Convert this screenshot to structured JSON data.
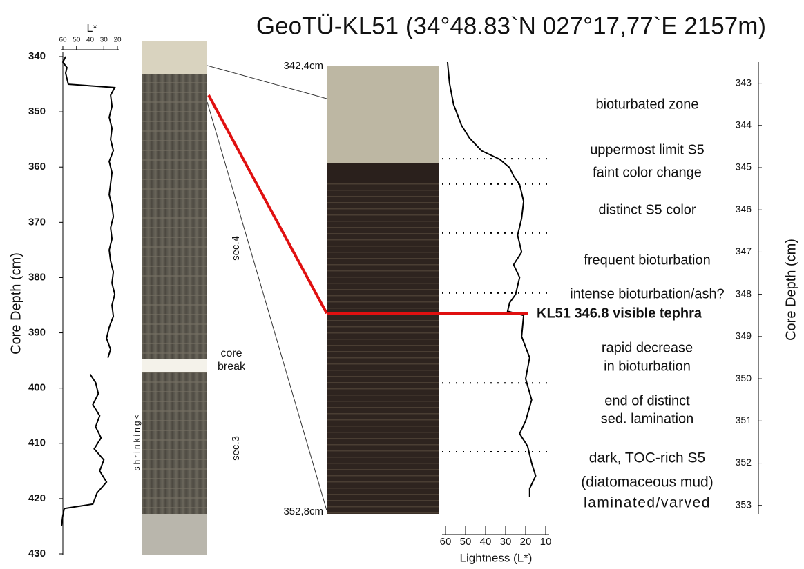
{
  "title": "GeoTÜ-KL51 (34°48.83`N  027°17,77`E  2157m)",
  "chart_data": [
    {
      "type": "line",
      "y_axis_label": "Core Depth (cm)",
      "x_axis_label": "L*",
      "xlim": [
        60,
        20
      ],
      "xticks": [
        60,
        50,
        40,
        30,
        20
      ],
      "ylim": [
        340,
        430
      ],
      "yticks": [
        340,
        350,
        360,
        370,
        380,
        390,
        400,
        410,
        420,
        430
      ],
      "x": [
        340,
        341,
        342,
        343,
        344,
        345,
        345.6,
        347,
        349,
        351,
        353,
        355,
        357,
        359,
        361,
        363,
        365,
        367,
        369,
        371,
        373,
        375,
        377,
        379,
        381,
        383,
        385,
        387,
        389,
        391,
        393,
        394.5,
        396,
        397.5,
        399,
        401,
        403,
        405,
        407,
        409,
        411,
        413,
        415,
        417,
        419,
        421,
        421.8,
        423,
        425
      ],
      "series": [
        {
          "name": "L*",
          "color": "#000000",
          "values": [
            58,
            60,
            57,
            58,
            57,
            56,
            22,
            25,
            24,
            26,
            24,
            25,
            23,
            26,
            24,
            25,
            26,
            24,
            23,
            25,
            24,
            26,
            25,
            23,
            24,
            22,
            24,
            23,
            26,
            28,
            25,
            27,
            null,
            40,
            36,
            34,
            38,
            33,
            36,
            32,
            37,
            30,
            33,
            28,
            35,
            38,
            59,
            60,
            61
          ]
        }
      ],
      "core_labels": [
        "sec.4",
        "core break",
        "shrinking<",
        "sec.3"
      ]
    },
    {
      "type": "line",
      "y_axis_label": "Core Depth (cm)",
      "x_axis_label": "Lightness (L*)",
      "xlim": [
        60,
        10
      ],
      "xticks": [
        60,
        50,
        40,
        30,
        20,
        10
      ],
      "ylim": [
        342.5,
        353.2
      ],
      "yticks": [
        343,
        344,
        345,
        346,
        347,
        348,
        349,
        350,
        351,
        352,
        353
      ],
      "photo_top_label": "342,4cm",
      "photo_bottom_label": "352,8cm",
      "x": [
        342.5,
        343,
        343.5,
        344,
        344.3,
        344.6,
        344.8,
        345,
        345.2,
        345.4,
        345.8,
        346.2,
        346.6,
        347,
        347.3,
        347.6,
        348,
        348.2,
        348.4,
        348.5,
        349,
        349.5,
        350,
        350.5,
        351,
        351.3,
        351.6,
        352,
        352.3,
        352.6,
        352.8
      ],
      "series": [
        {
          "name": "Lightness (L*)",
          "color": "#000000",
          "values": [
            59,
            58,
            56,
            52,
            48,
            42,
            33,
            28,
            26,
            23,
            21,
            22,
            24,
            22,
            26,
            23,
            25,
            28,
            29,
            21,
            22,
            18,
            20,
            17,
            20,
            23,
            19,
            17,
            15,
            18,
            18
          ]
        }
      ],
      "boundaries": [
        344.79,
        345.39,
        346.55,
        347.97,
        350.1,
        351.73
      ],
      "zones": [
        "bioturbated zone",
        "uppermost limit S5",
        "faint color change",
        "distinct S5 color",
        "frequent bioturbation",
        "intense bioturbation/ash?",
        "rapid decrease",
        "in  bioturbation",
        "end of distinct",
        "sed. lamination",
        "dark, TOC-rich S5",
        "(diatomaceous mud)",
        "laminated/varved"
      ],
      "tephra_depth": 348.45,
      "tephra_label": "KL51 346.8 visible tephra"
    }
  ]
}
